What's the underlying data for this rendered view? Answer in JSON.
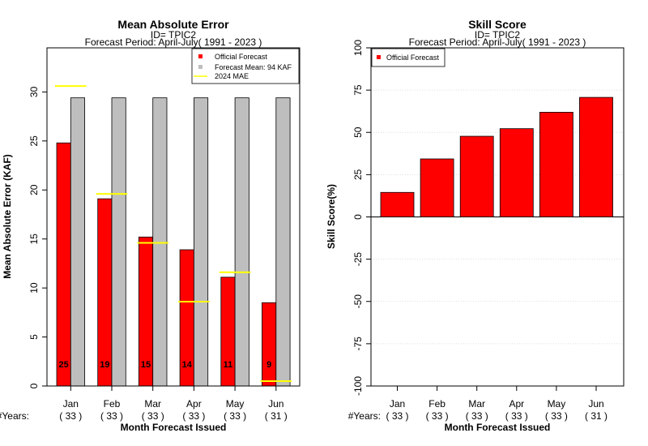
{
  "chart_data": [
    {
      "type": "bar",
      "title": "Mean Absolute Error",
      "subtitle_lines": [
        "ID= TPIC2",
        "Forecast Period: April-July( 1991 - 2023 )"
      ],
      "xlabel": "Month Forecast Issued",
      "ylabel": "Mean Absolute Error (KAF)",
      "categories": [
        "Jan",
        "Feb",
        "Mar",
        "Apr",
        "May",
        "Jun"
      ],
      "years_label": "#Years:",
      "years": [
        "( 33 )",
        "( 33 )",
        "( 33 )",
        "( 33 )",
        "( 33 )",
        "( 31 )"
      ],
      "ylim": [
        0,
        34.5
      ],
      "yticks": [
        0,
        5,
        10,
        15,
        20,
        25,
        30
      ],
      "series": [
        {
          "name": "Official Forecast",
          "color": "#ff0000",
          "values": [
            24.8,
            19.1,
            15.2,
            13.9,
            11.1,
            8.5
          ]
        },
        {
          "name": "Forecast Mean: 94 KAF",
          "color": "#bebebe",
          "values": [
            29.4,
            29.4,
            29.4,
            29.4,
            29.4,
            29.4
          ]
        }
      ],
      "mae_2024": {
        "name": " 2024  MAE",
        "color": "#ffff00",
        "values": [
          30.6,
          19.6,
          14.6,
          8.6,
          11.6,
          0.5
        ]
      },
      "bar_labels": [
        "25",
        "19",
        "15",
        "14",
        "11",
        "9"
      ],
      "legend_position": "top-right"
    },
    {
      "type": "bar",
      "title": "Skill Score",
      "subtitle_lines": [
        "ID= TPIC2",
        "Forecast Period: April-July( 1991 - 2023 )"
      ],
      "xlabel": "Month Forecast Issued",
      "ylabel": "Skill Score(%)",
      "categories": [
        "Jan",
        "Feb",
        "Mar",
        "Apr",
        "May",
        "Jun"
      ],
      "years_label": "#Years:",
      "years": [
        "( 33 )",
        "( 33 )",
        "( 33 )",
        "( 33 )",
        "( 33 )",
        "( 31 )"
      ],
      "ylim": [
        -100,
        100
      ],
      "yticks": [
        -100,
        -75,
        -50,
        -25,
        0,
        25,
        50,
        75,
        100
      ],
      "grid": true,
      "series": [
        {
          "name": "Official Forecast",
          "color": "#ff0000",
          "values": [
            14.5,
            34.3,
            47.7,
            52.2,
            61.9,
            70.7
          ]
        }
      ],
      "legend_position": "top-left"
    }
  ]
}
